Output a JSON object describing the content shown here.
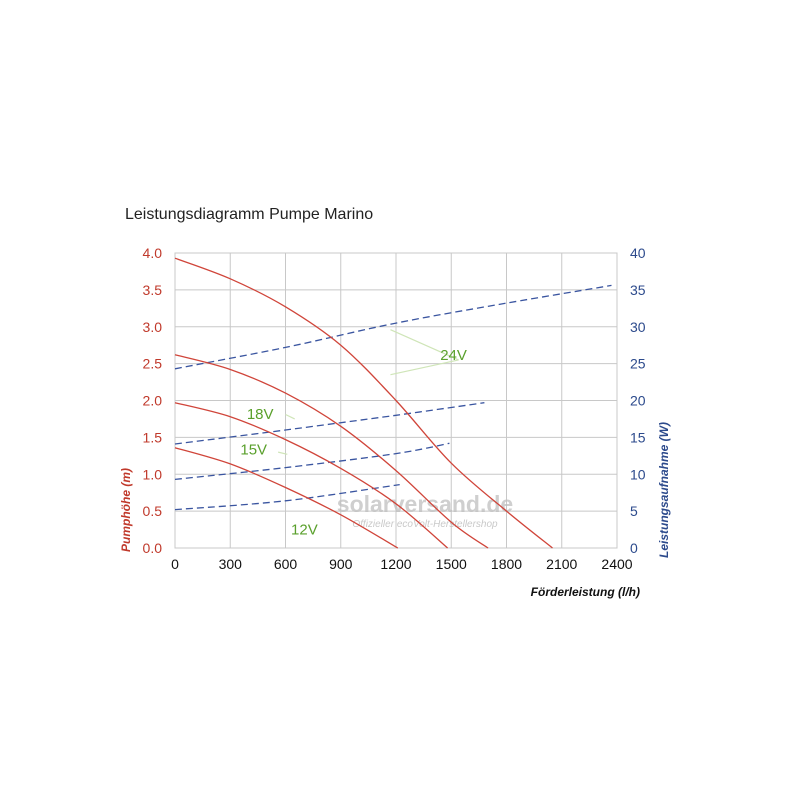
{
  "title": "Leistungsdiagramm Pumpe Marino",
  "colors": {
    "head_axis": "#c0392b",
    "power_axis": "#2c4a8c",
    "head_curve": "#d0453a",
    "power_curve": "#3a55a0",
    "voltage_label": "#5aa02c",
    "grid": "#c8c8c8"
  },
  "watermark": {
    "text": "solarversand.de",
    "subtext": "Offizieller ecoVolt-Herstellershop"
  },
  "chart_data": {
    "type": "line",
    "title": "Leistungsdiagramm Pumpe Marino",
    "xlabel": "Förderleistung (l/h)",
    "ylabel": "Pumphöhe (m)",
    "y2label": "Leistungsaufnahme (W)",
    "xlim": [
      0,
      2400
    ],
    "ylim": [
      0,
      4.0
    ],
    "y2lim": [
      0,
      40
    ],
    "x_ticks": [
      "0",
      "300",
      "600",
      "900",
      "1200",
      "1500",
      "1800",
      "2100",
      "2400"
    ],
    "y_ticks": [
      "0.0",
      "0.5",
      "1.0",
      "1.5",
      "2.0",
      "2.5",
      "3.0",
      "3.5",
      "4.0"
    ],
    "y2_ticks": [
      "0",
      "5",
      "10",
      "15",
      "20",
      "25",
      "30",
      "35",
      "40"
    ],
    "grid": true,
    "head_series": [
      {
        "voltage": "24V",
        "points": [
          [
            0,
            3.93
          ],
          [
            300,
            3.65
          ],
          [
            600,
            3.27
          ],
          [
            900,
            2.75
          ],
          [
            1200,
            2.0
          ],
          [
            1500,
            1.15
          ],
          [
            1800,
            0.5
          ],
          [
            2050,
            0
          ]
        ]
      },
      {
        "voltage": "18V",
        "points": [
          [
            0,
            2.62
          ],
          [
            300,
            2.42
          ],
          [
            600,
            2.1
          ],
          [
            900,
            1.65
          ],
          [
            1200,
            1.05
          ],
          [
            1500,
            0.35
          ],
          [
            1700,
            0
          ]
        ]
      },
      {
        "voltage": "15V",
        "points": [
          [
            0,
            1.97
          ],
          [
            300,
            1.78
          ],
          [
            600,
            1.47
          ],
          [
            900,
            1.08
          ],
          [
            1200,
            0.6
          ],
          [
            1480,
            0
          ]
        ]
      },
      {
        "voltage": "12V",
        "points": [
          [
            0,
            1.36
          ],
          [
            300,
            1.14
          ],
          [
            600,
            0.82
          ],
          [
            900,
            0.45
          ],
          [
            1210,
            0
          ]
        ]
      }
    ],
    "power_series": [
      {
        "voltage": "24V",
        "points": [
          [
            0,
            24.3
          ],
          [
            600,
            27.2
          ],
          [
            1200,
            30.5
          ],
          [
            1800,
            33.2
          ],
          [
            2370,
            35.6
          ]
        ]
      },
      {
        "voltage": "18V",
        "points": [
          [
            0,
            14.1
          ],
          [
            600,
            16.0
          ],
          [
            1200,
            18.0
          ],
          [
            1680,
            19.7
          ]
        ]
      },
      {
        "voltage": "15V",
        "points": [
          [
            0,
            9.3
          ],
          [
            600,
            10.9
          ],
          [
            1200,
            12.8
          ],
          [
            1490,
            14.2
          ]
        ]
      },
      {
        "voltage": "12V",
        "points": [
          [
            0,
            5.2
          ],
          [
            600,
            6.4
          ],
          [
            1220,
            8.6
          ]
        ]
      }
    ],
    "annotations": [
      {
        "text": "24V",
        "at": [
          1440,
          2.55
        ]
      },
      {
        "text": "18V",
        "at": [
          390,
          1.75
        ]
      },
      {
        "text": "15V",
        "at": [
          355,
          1.27
        ]
      },
      {
        "text": "12V",
        "at": [
          630,
          0.18
        ]
      }
    ]
  }
}
